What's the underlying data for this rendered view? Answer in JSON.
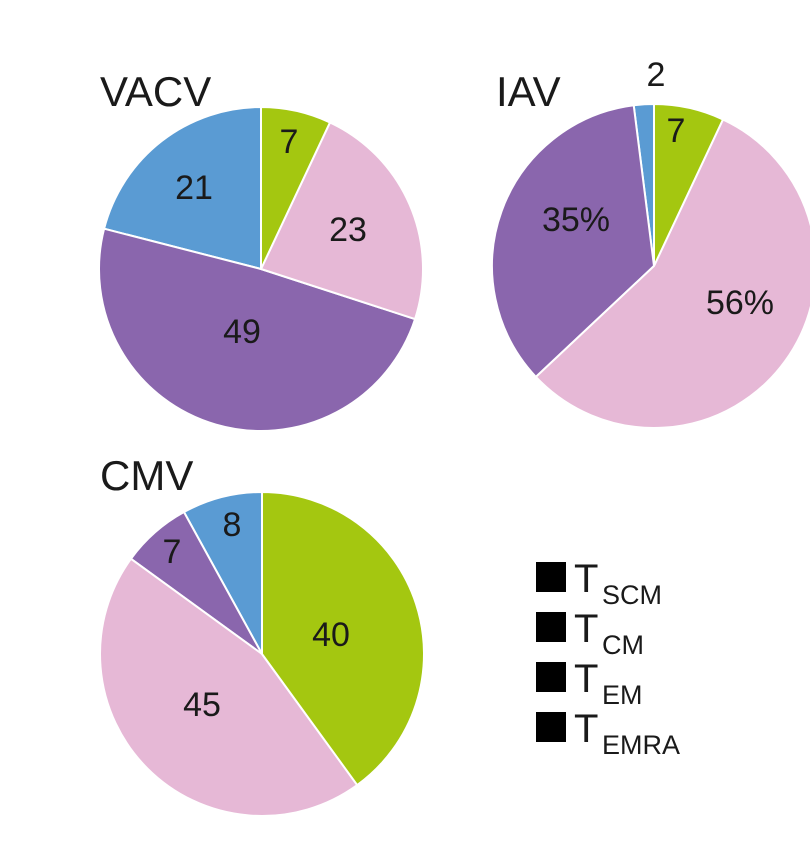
{
  "legend": {
    "items": [
      {
        "key": "SCM",
        "main": "T",
        "sub": "SCM",
        "color": "#5a9bd3"
      },
      {
        "key": "CM",
        "main": "T",
        "sub": "CM",
        "color": "#8a66ad"
      },
      {
        "key": "EM",
        "main": "T",
        "sub": "EM",
        "color": "#e6b8d6"
      },
      {
        "key": "EMRA",
        "main": "T",
        "sub": "EMRA",
        "color": "#a4c710"
      }
    ]
  },
  "chart_data": [
    {
      "type": "pie",
      "title": "VACV",
      "slices": [
        {
          "category": "TSCM",
          "value": 21,
          "label": "21",
          "color": "#5a9bd3"
        },
        {
          "category": "TCM",
          "value": 49,
          "label": "49",
          "color": "#8a66ad"
        },
        {
          "category": "TEM",
          "value": 23,
          "label": "23",
          "color": "#e6b8d6"
        },
        {
          "category": "TEMRA",
          "value": 7,
          "label": "7",
          "color": "#a4c710"
        }
      ]
    },
    {
      "type": "pie",
      "title": "IAV",
      "slices": [
        {
          "category": "TSCM",
          "value": 2,
          "label": "2",
          "color": "#5a9bd3"
        },
        {
          "category": "TCM",
          "value": 35,
          "label": "35%",
          "color": "#8a66ad"
        },
        {
          "category": "TEM",
          "value": 56,
          "label": "56%",
          "color": "#e6b8d6"
        },
        {
          "category": "TEMRA",
          "value": 7,
          "label": "7",
          "color": "#a4c710"
        }
      ]
    },
    {
      "type": "pie",
      "title": "CMV",
      "slices": [
        {
          "category": "TSCM",
          "value": 8,
          "label": "8",
          "color": "#5a9bd3"
        },
        {
          "category": "TCM",
          "value": 7,
          "label": "7",
          "color": "#8a66ad"
        },
        {
          "category": "TEM",
          "value": 45,
          "label": "45",
          "color": "#e6b8d6"
        },
        {
          "category": "TEMRA",
          "value": 40,
          "label": "40",
          "color": "#a4c710"
        }
      ]
    }
  ]
}
